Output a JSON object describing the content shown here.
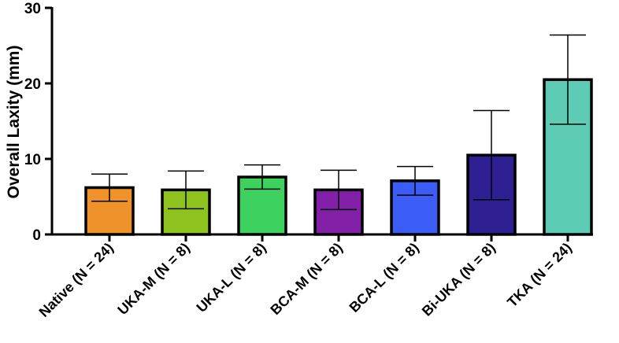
{
  "chart_data": {
    "type": "bar",
    "ylabel": "Overall Laxity (mm)",
    "xlabel": "",
    "title": "",
    "ylim": [
      0,
      30
    ],
    "yticks": [
      "0",
      "10",
      "20",
      "30"
    ],
    "grid": false,
    "categories": [
      "Native (N = 24)",
      "UKA-M (N = 8)",
      "UKA-L (N = 8)",
      "BCA-M (N = 8)",
      "BCA-L (N = 8)",
      "Bi-UKA (N = 8)",
      "TKA (N = 24)"
    ],
    "values": [
      6.2,
      5.9,
      7.6,
      5.9,
      7.1,
      10.5,
      20.5
    ],
    "errors": [
      1.8,
      2.5,
      1.6,
      2.6,
      1.9,
      5.9,
      5.9
    ],
    "colors": [
      "#f0922a",
      "#8dc21f",
      "#3dd160",
      "#8320a8",
      "#3b5cf5",
      "#2e2093",
      "#5ecbb5"
    ]
  }
}
